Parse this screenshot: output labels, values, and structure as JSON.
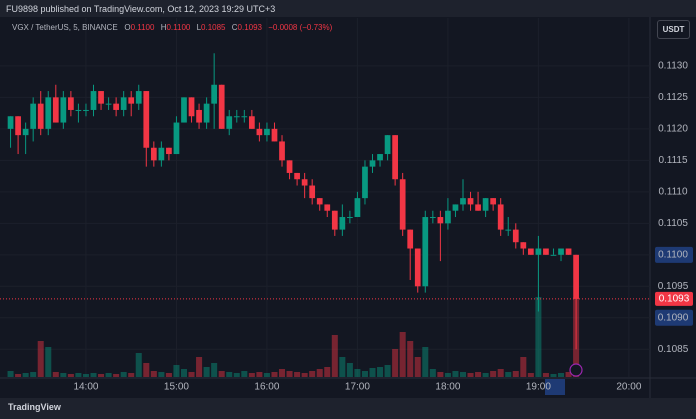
{
  "published": "FU9898 published on TradingView.com, Oct 12, 2023 19:29 UTC+3",
  "footer": "TradingView",
  "currency": "USDT",
  "legend": {
    "symbol": "VGX / TetherUS, 5, BINANCE",
    "fields": [
      {
        "key": "O",
        "value": "0.1100"
      },
      {
        "key": "H",
        "value": "0.1100"
      },
      {
        "key": "L",
        "value": "0.1085"
      },
      {
        "key": "C",
        "value": "0.1093"
      }
    ],
    "change": "−0.0008 (−0.73%)"
  },
  "chart_data": {
    "type": "candlestick",
    "up_color": "#089981",
    "down_color": "#f23645",
    "grid": true,
    "xlim": [
      783,
      1214
    ],
    "ylim": [
      0.10806,
      0.11376
    ],
    "xticks": [
      {
        "value": 840,
        "label": "14:00"
      },
      {
        "value": 900,
        "label": "15:00"
      },
      {
        "value": 960,
        "label": "16:00"
      },
      {
        "value": 1020,
        "label": "17:00"
      },
      {
        "value": 1080,
        "label": "18:00"
      },
      {
        "value": 1140,
        "label": "19:00"
      },
      {
        "value": 1200,
        "label": "20:00"
      }
    ],
    "yticks": [
      {
        "value": 0.113,
        "label": "0.1130"
      },
      {
        "value": 0.1125,
        "label": "0.1125"
      },
      {
        "value": 0.112,
        "label": "0.1120"
      },
      {
        "value": 0.1115,
        "label": "0.1115"
      },
      {
        "value": 0.111,
        "label": "0.1110"
      },
      {
        "value": 0.1105,
        "label": "0.1105"
      },
      {
        "value": 0.11,
        "label": "0.1100"
      },
      {
        "value": 0.1095,
        "label": "0.1095"
      },
      {
        "value": 0.109,
        "label": "0.1090"
      },
      {
        "value": 0.1085,
        "label": "0.1085"
      }
    ],
    "highlighted_yticks": [
      0.11,
      0.109
    ],
    "last_price": {
      "value": 0.1093,
      "label": "0.1093"
    },
    "x": [
      790,
      795,
      800,
      805,
      810,
      815,
      820,
      825,
      830,
      835,
      840,
      845,
      850,
      855,
      860,
      865,
      870,
      875,
      880,
      885,
      890,
      895,
      900,
      905,
      910,
      915,
      920,
      925,
      930,
      935,
      940,
      945,
      950,
      955,
      960,
      965,
      970,
      975,
      980,
      985,
      990,
      995,
      1000,
      1005,
      1010,
      1015,
      1020,
      1025,
      1030,
      1035,
      1040,
      1045,
      1050,
      1055,
      1060,
      1065,
      1070,
      1075,
      1080,
      1085,
      1090,
      1095,
      1100,
      1105,
      1110,
      1115,
      1120,
      1125,
      1130,
      1135,
      1140,
      1145,
      1150,
      1155,
      1160,
      1165
    ],
    "open": [
      0.112,
      0.1122,
      0.1119,
      0.112,
      0.1124,
      0.112,
      0.1125,
      0.1121,
      0.1125,
      0.1123,
      0.1123,
      0.1123,
      0.1126,
      0.1124,
      0.1124,
      0.1123,
      0.1125,
      0.1124,
      0.1126,
      0.1117,
      0.1115,
      0.1117,
      0.1116,
      0.1121,
      0.1125,
      0.1123,
      0.1121,
      0.1124,
      0.1127,
      0.112,
      0.1122,
      0.1122,
      0.1122,
      0.112,
      0.1119,
      0.112,
      0.1118,
      0.1115,
      0.1113,
      0.1112,
      0.1111,
      0.1109,
      0.1108,
      0.1107,
      0.1104,
      0.1106,
      0.1106,
      0.1109,
      0.1114,
      0.1115,
      0.1116,
      0.1119,
      0.1112,
      0.1104,
      0.1101,
      0.1095,
      0.1106,
      0.1106,
      0.1105,
      0.1107,
      0.1108,
      0.1109,
      0.1108,
      0.1107,
      0.1109,
      0.1108,
      0.1104,
      0.1104,
      0.1102,
      0.1101,
      0.11,
      0.1101,
      0.11,
      0.11,
      0.1101,
      0.11
    ],
    "high": [
      0.1122,
      0.1122,
      0.1121,
      0.1125,
      0.1126,
      0.1126,
      0.1127,
      0.1126,
      0.1126,
      0.1124,
      0.1124,
      0.1127,
      0.1126,
      0.1125,
      0.1125,
      0.1126,
      0.1126,
      0.1127,
      0.1126,
      0.1118,
      0.1118,
      0.1117,
      0.1122,
      0.1125,
      0.1125,
      0.1124,
      0.1125,
      0.1132,
      0.1127,
      0.1123,
      0.1123,
      0.1123,
      0.1123,
      0.1121,
      0.1121,
      0.1121,
      0.1119,
      0.1115,
      0.1113,
      0.1113,
      0.1112,
      0.1109,
      0.1108,
      0.1107,
      0.1108,
      0.1107,
      0.111,
      0.1115,
      0.1116,
      0.1116,
      0.1119,
      0.1119,
      0.1113,
      0.1104,
      0.1101,
      0.1107,
      0.1107,
      0.1107,
      0.1109,
      0.1108,
      0.1112,
      0.111,
      0.111,
      0.1109,
      0.1109,
      0.1109,
      0.1106,
      0.1105,
      0.1102,
      0.1101,
      0.1103,
      0.1101,
      0.1101,
      0.1101,
      0.1101,
      0.11
    ],
    "low": [
      0.1117,
      0.1116,
      0.1116,
      0.1118,
      0.1119,
      0.1119,
      0.1121,
      0.112,
      0.1122,
      0.1121,
      0.1122,
      0.1122,
      0.1123,
      0.1123,
      0.1122,
      0.1122,
      0.1122,
      0.1123,
      0.1114,
      0.1114,
      0.1114,
      0.1115,
      0.1116,
      0.1121,
      0.1121,
      0.112,
      0.112,
      0.112,
      0.112,
      0.1119,
      0.1121,
      0.1121,
      0.112,
      0.1118,
      0.1118,
      0.1118,
      0.1114,
      0.1112,
      0.1111,
      0.1109,
      0.1108,
      0.1107,
      0.1106,
      0.1103,
      0.1103,
      0.1105,
      0.1106,
      0.1108,
      0.1113,
      0.1114,
      0.1115,
      0.1111,
      0.1103,
      0.1096,
      0.1094,
      0.1094,
      0.1105,
      0.1099,
      0.1104,
      0.1106,
      0.1107,
      0.1107,
      0.1107,
      0.1106,
      0.1107,
      0.1103,
      0.1103,
      0.1101,
      0.11,
      0.11,
      0.1091,
      0.11,
      0.11,
      0.1099,
      0.11,
      0.1085
    ],
    "close": [
      0.1122,
      0.1119,
      0.112,
      0.1124,
      0.112,
      0.1125,
      0.1121,
      0.1125,
      0.1123,
      0.1123,
      0.1123,
      0.1126,
      0.1124,
      0.1124,
      0.1123,
      0.1125,
      0.1124,
      0.1126,
      0.1117,
      0.1115,
      0.1117,
      0.1116,
      0.1121,
      0.1125,
      0.1122,
      0.1121,
      0.1124,
      0.1127,
      0.112,
      0.1122,
      0.1122,
      0.1122,
      0.112,
      0.1119,
      0.112,
      0.1118,
      0.1115,
      0.1113,
      0.1112,
      0.1111,
      0.1109,
      0.1108,
      0.1107,
      0.1104,
      0.1106,
      0.1106,
      0.1109,
      0.1114,
      0.1115,
      0.1116,
      0.1119,
      0.1112,
      0.1104,
      0.1101,
      0.1095,
      0.1106,
      0.1106,
      0.1105,
      0.1107,
      0.1108,
      0.1109,
      0.1108,
      0.1107,
      0.1109,
      0.1108,
      0.1104,
      0.1104,
      0.1102,
      0.1101,
      0.11,
      0.1101,
      0.11,
      0.11,
      0.1101,
      0.11,
      0.1093
    ],
    "volume": [
      6,
      3,
      4,
      5,
      36,
      30,
      5,
      4,
      3,
      4,
      3,
      4,
      3,
      4,
      3,
      5,
      4,
      24,
      14,
      6,
      5,
      4,
      12,
      8,
      5,
      20,
      10,
      14,
      6,
      5,
      4,
      6,
      4,
      5,
      4,
      5,
      8,
      6,
      5,
      4,
      6,
      8,
      10,
      42,
      20,
      14,
      8,
      6,
      9,
      10,
      12,
      28,
      45,
      36,
      20,
      30,
      8,
      5,
      4,
      6,
      5,
      4,
      5,
      4,
      6,
      8,
      5,
      6,
      20,
      4,
      80,
      4,
      3,
      4,
      5,
      80
    ]
  }
}
